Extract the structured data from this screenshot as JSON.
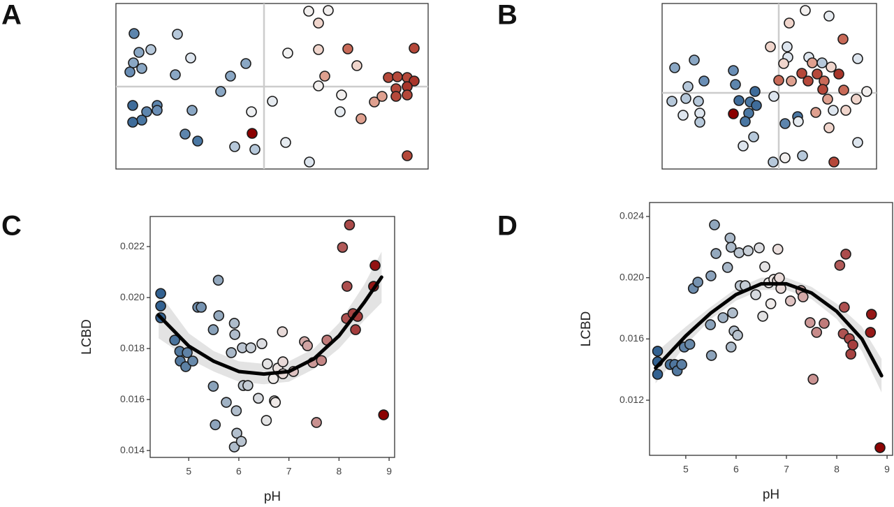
{
  "chart_data": [
    {
      "type": "scatter",
      "label": "A",
      "crosshair": true,
      "crosshair_color": "#cccccc",
      "xlim": [
        -212,
        235
      ],
      "ylim": [
        -118,
        119
      ],
      "x": [
        -186,
        -124,
        -179,
        -162,
        -187,
        -192,
        -175,
        -127,
        -105,
        -48,
        -26,
        -62,
        -188,
        -168,
        -153,
        -153,
        -175,
        -188,
        -103,
        -113,
        -95,
        -42,
        -18,
        -17,
        -13,
        12,
        31,
        34,
        64,
        92,
        78,
        78,
        87,
        78,
        65,
        109,
        111,
        120,
        133,
        139,
        158,
        169,
        178,
        191,
        205,
        215,
        215,
        205,
        189,
        189,
        205,
        205
      ],
      "y": [
        76,
        75,
        49,
        53,
        34,
        21,
        26,
        17,
        41,
        15,
        33,
        -7,
        -27,
        -36,
        -27,
        -34,
        -48,
        -51,
        -34,
        -68,
        -78,
        -86,
        -36,
        -67,
        -90,
        -21,
        -80,
        48,
        108,
        109,
        91,
        53,
        15,
        1,
        -108,
        -36,
        -12,
        54,
        30,
        -46,
        -22,
        -14,
        13,
        14,
        13,
        55,
        8,
        0,
        -3,
        -14,
        -12,
        -99
      ],
      "colors": [
        "#5d85ad",
        "#b6c8da",
        "#8aa7c4",
        "#b6c8da",
        "#8aa7c4",
        "#6a8eb5",
        "#8aa7c4",
        "#8aa7c4",
        "#dde5ee",
        "#8aa7c4",
        "#8aa7c4",
        "#8aa7c4",
        "#3f6c9a",
        "#5d85ad",
        "#5d85ad",
        "#6a8eb5",
        "#4a77a3",
        "#3f6c9a",
        "#8aa7c4",
        "#5d85ad",
        "#4a77a3",
        "#b6c8da",
        "#eef0f2",
        "#8b0000",
        "#b6c8da",
        "#e6ebf0",
        "#e6ebf0",
        "#f2f2f2",
        "#f2efee",
        "#f2efee",
        "#f0d5cc",
        "#f0d5cc",
        "#dfa08f",
        "#f2efee",
        "#dde5ee",
        "#e6ebf0",
        "#f2efee",
        "#c86a58",
        "#f0d5cc",
        "#dfa08f",
        "#dfa08f",
        "#dfa08f",
        "#b5483a",
        "#b5483a",
        "#b5483a",
        "#b5483a",
        "#a8352a",
        "#a8352a",
        "#b5483a",
        "#b5483a",
        "#b5483a",
        "#b5483a"
      ]
    },
    {
      "type": "scatter",
      "label": "B",
      "crosshair": true,
      "crosshair_color": "#cccccc",
      "xlim": [
        -167,
        140
      ],
      "ylim": [
        -109,
        128
      ],
      "x": [
        38,
        72,
        15,
        92,
        -12,
        12,
        13,
        7,
        43,
        48,
        62,
        75,
        113,
        -121,
        -149,
        -65,
        -107,
        -130,
        -62,
        -34,
        -57,
        -41,
        -32,
        -153,
        -133,
        -115,
        -137,
        -113,
        -113,
        -65,
        -43,
        -48,
        -36,
        -51,
        -7,
        0,
        18,
        33,
        42,
        55,
        65,
        63,
        86,
        93,
        111,
        126,
        70,
        53,
        78,
        96,
        27,
        9,
        28,
        72,
        113,
        34,
        9,
        -8,
        79
      ],
      "y": [
        118,
        110,
        100,
        77,
        66,
        66,
        51,
        42,
        51,
        43,
        43,
        37,
        49,
        47,
        36,
        32,
        17,
        9,
        12,
        2,
        -11,
        -13,
        -18,
        -12,
        -8,
        -12,
        -32,
        -29,
        -42,
        -30,
        -29,
        -41,
        -63,
        -76,
        -5,
        18,
        17,
        28,
        17,
        27,
        17,
        5,
        27,
        4,
        -9,
        2,
        -9,
        -28,
        -25,
        -25,
        -34,
        -44,
        -41,
        -50,
        -71,
        -90,
        -93,
        -99,
        -99
      ],
      "colors": [
        "#f2efee",
        "#e6ebf0",
        "#f0d5cc",
        "#c86a58",
        "#f0d5cc",
        "#dde5ee",
        "#dde5ee",
        "#f0d5cc",
        "#dde5ee",
        "#dfa08f",
        "#b6c8da",
        "#f0d5cc",
        "#dde5ee",
        "#8aa7c4",
        "#8aa7c4",
        "#6a8eb5",
        "#6a8eb5",
        "#b6c8da",
        "#5d85ad",
        "#3f6c9a",
        "#3f6c9a",
        "#4a77a3",
        "#3f6c9a",
        "#b6c8da",
        "#b6c8da",
        "#b6c8da",
        "#dde5ee",
        "#dde5ee",
        "#b6c8da",
        "#8b0000",
        "#4a77a3",
        "#4a77a3",
        "#b6c8da",
        "#dde5ee",
        "#dde5ee",
        "#c86a58",
        "#dfa08f",
        "#b5483a",
        "#b5483a",
        "#b5483a",
        "#c86a58",
        "#b5483a",
        "#a8352a",
        "#c86a58",
        "#f0d5cc",
        "#f2efee",
        "#dfa08f",
        "#dfa08f",
        "#dde5ee",
        "#f0d5cc",
        "#4a77a3",
        "#5d85ad",
        "#e6ebf0",
        "#f0d5cc",
        "#dde5ee",
        "#b6c8da",
        "#f2efee",
        "#b6c8da",
        "#b5483a"
      ]
    },
    {
      "type": "scatter",
      "label": "C",
      "x_label": "pH",
      "y_label": "LCBD",
      "xlim": [
        4.23,
        9.11
      ],
      "ylim": [
        0.01373,
        0.02318
      ],
      "xticks": [
        5,
        6,
        7,
        8,
        9
      ],
      "yticks": [
        0.014,
        0.016,
        0.018,
        {
          "value": 0.02,
          "label": "0.020"
        },
        0.022
      ],
      "colorscale": {
        "domain": [
          4.4,
          6.7,
          8.9
        ],
        "range": [
          "#2f5f8f",
          "#f0ecea",
          "#8b0000"
        ]
      },
      "x": [
        4.44,
        4.44,
        4.44,
        4.72,
        4.82,
        4.97,
        4.83,
        4.94,
        5.08,
        5.18,
        5.25,
        5.59,
        5.49,
        5.6,
        5.49,
        5.53,
        5.75,
        5.85,
        5.91,
        5.92,
        5.95,
        5.96,
        5.91,
        6.05,
        6.07,
        6.09,
        6.18,
        6.24,
        6.39,
        6.46,
        6.55,
        6.57,
        6.69,
        6.71,
        6.73,
        6.78,
        6.87,
        6.88,
        6.88,
        7.09,
        7.31,
        7.37,
        7.48,
        7.55,
        7.65,
        7.76,
        8.07,
        8.21,
        8.16,
        8.15,
        8.28,
        8.33,
        8.37,
        8.69,
        8.72,
        8.89
      ],
      "y": [
        0.02016,
        0.01967,
        0.01921,
        0.01833,
        0.01789,
        0.01784,
        0.01751,
        0.01729,
        0.01751,
        0.01962,
        0.01962,
        0.02068,
        0.01874,
        0.01929,
        0.01652,
        0.01501,
        0.01589,
        0.01784,
        0.01899,
        0.01855,
        0.01556,
        0.01468,
        0.01414,
        0.01436,
        0.01803,
        0.01655,
        0.01655,
        0.01803,
        0.01605,
        0.01819,
        0.01518,
        0.0174,
        0.01682,
        0.01595,
        0.01589,
        0.01723,
        0.01866,
        0.01748,
        0.01701,
        0.0171,
        0.01827,
        0.01811,
        0.01745,
        0.0151,
        0.01753,
        0.01833,
        0.02197,
        0.02285,
        0.02044,
        0.01918,
        0.01937,
        0.01874,
        0.01926,
        0.02044,
        0.02126,
        0.0154
      ],
      "fit": {
        "color": "#000000",
        "band_color": "#e3e3e3",
        "x": [
          4.4,
          5,
          5.5,
          6,
          6.5,
          7,
          7.5,
          8,
          8.5,
          8.85
        ],
        "y": [
          0.0193,
          0.0181,
          0.0175,
          0.0171,
          0.017,
          0.0171,
          0.0176,
          0.0185,
          0.0198,
          0.0208
        ],
        "lower": [
          0.0184,
          0.0176,
          0.0171,
          0.0167,
          0.0166,
          0.0167,
          0.0172,
          0.018,
          0.0191,
          0.0198
        ],
        "upper": [
          0.0202,
          0.0186,
          0.0179,
          0.0175,
          0.0174,
          0.0175,
          0.018,
          0.019,
          0.0205,
          0.0218
        ]
      }
    },
    {
      "type": "scatter",
      "label": "D",
      "x_label": "pH",
      "y_label": "LCBD",
      "xlim": [
        4.28,
        9.11
      ],
      "ylim": [
        0.0084,
        0.02491
      ],
      "xticks": [
        5,
        6,
        7,
        8,
        9
      ],
      "yticks": [
        0.012,
        0.016,
        {
          "value": 0.02,
          "label": "0.020"
        },
        0.024
      ],
      "colorscale": {
        "domain": [
          4.4,
          6.7,
          8.9
        ],
        "range": [
          "#2f5f8f",
          "#f0ecea",
          "#8b0000"
        ]
      },
      "x": [
        4.44,
        4.44,
        4.44,
        4.69,
        4.78,
        4.83,
        4.92,
        4.97,
        5.08,
        5.15,
        5.24,
        5.5,
        5.49,
        5.51,
        5.57,
        5.6,
        5.74,
        5.83,
        5.88,
        5.9,
        5.9,
        5.93,
        5.96,
        6.03,
        6.06,
        6.08,
        6.18,
        6.24,
        6.46,
        6.39,
        6.53,
        6.57,
        6.65,
        6.69,
        6.75,
        6.82,
        6.86,
        6.83,
        6.89,
        7.08,
        7.29,
        7.33,
        7.47,
        7.53,
        7.6,
        7.75,
        8.06,
        8.18,
        8.15,
        8.13,
        8.25,
        8.28,
        8.32,
        8.69,
        8.67,
        8.86
      ],
      "y": [
        0.0152,
        0.01451,
        0.01369,
        0.01433,
        0.01433,
        0.01392,
        0.01433,
        0.01547,
        0.01565,
        0.0193,
        0.01971,
        0.02012,
        0.01693,
        0.01492,
        0.02345,
        0.02158,
        0.01739,
        0.02067,
        0.02259,
        0.02199,
        0.01547,
        0.0177,
        0.01652,
        0.01624,
        0.02163,
        0.01948,
        0.01948,
        0.02176,
        0.02195,
        0.01889,
        0.01748,
        0.02072,
        0.01967,
        0.0183,
        0.01989,
        0.0198,
        0.01999,
        0.02186,
        0.0193,
        0.01848,
        0.01916,
        0.01875,
        0.01707,
        0.01337,
        0.01643,
        0.01702,
        0.02081,
        0.02154,
        0.01807,
        0.01634,
        0.01602,
        0.01501,
        0.01561,
        0.01761,
        0.01643,
        0.0089
      ],
      "fit": {
        "color": "#000000",
        "band_color": "#e3e3e3",
        "x": [
          4.4,
          5,
          5.5,
          6,
          6.5,
          7,
          7.5,
          8,
          8.5,
          8.89
        ],
        "y": [
          0.0141,
          0.0162,
          0.0177,
          0.0189,
          0.0196,
          0.0196,
          0.019,
          0.0178,
          0.016,
          0.0136
        ],
        "lower": [
          0.0131,
          0.0156,
          0.0173,
          0.0185,
          0.0192,
          0.0192,
          0.0186,
          0.0173,
          0.0152,
          0.0125
        ],
        "upper": [
          0.0151,
          0.0168,
          0.0181,
          0.0193,
          0.02,
          0.02,
          0.0194,
          0.0183,
          0.0168,
          0.0147
        ]
      }
    }
  ]
}
